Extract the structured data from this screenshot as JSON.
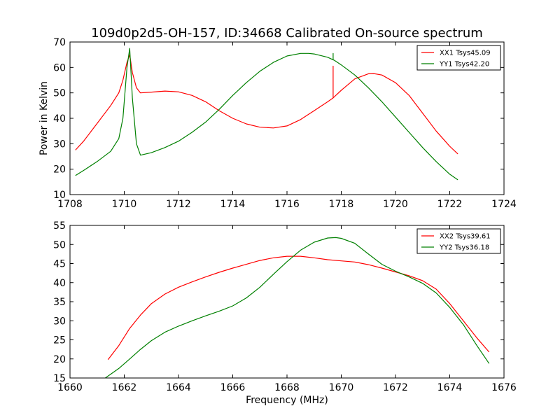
{
  "title": "109d0p2d5-OH-157, ID:34668 Calibrated On-source spectrum",
  "chart_data": [
    {
      "type": "line",
      "xlabel": "",
      "ylabel": "Power in Kelvin",
      "xlim": [
        1708,
        1724
      ],
      "ylim": [
        10,
        70
      ],
      "xticks": [
        "1708",
        "1710",
        "1712",
        "1714",
        "1716",
        "1718",
        "1720",
        "1722",
        "1724"
      ],
      "yticks": [
        "10",
        "20",
        "30",
        "40",
        "50",
        "60",
        "70"
      ],
      "legend_position": "top-right",
      "series": [
        {
          "name": "XX1 Tsys45.09",
          "color": "#ff0000",
          "x": [
            1708.2,
            1708.5,
            1709.0,
            1709.5,
            1709.8,
            1709.95,
            1710.1,
            1710.2,
            1710.3,
            1710.45,
            1710.6,
            1711.0,
            1711.5,
            1712.0,
            1712.5,
            1713.0,
            1713.5,
            1714.0,
            1714.5,
            1715.0,
            1715.5,
            1716.0,
            1716.5,
            1717.0,
            1717.5,
            1717.7,
            1717.7,
            1717.7,
            1717.75,
            1718.0,
            1718.5,
            1719.0,
            1719.2,
            1719.5,
            1720.0,
            1720.5,
            1721.0,
            1721.5,
            1722.0,
            1722.3
          ],
          "y": [
            27.5,
            31,
            38,
            45,
            50,
            55,
            62,
            65,
            58,
            52,
            50,
            50.3,
            50.7,
            50.4,
            49,
            46.5,
            43,
            40,
            37.8,
            36.5,
            36.2,
            37,
            39.5,
            43,
            46.5,
            48,
            60.5,
            48,
            48.5,
            51,
            55.5,
            57.5,
            57.6,
            57,
            54,
            49,
            42,
            35,
            29,
            26
          ]
        },
        {
          "name": "YY1 Tsys42.20",
          "color": "#008000",
          "x": [
            1708.2,
            1708.5,
            1709.0,
            1709.5,
            1709.8,
            1709.95,
            1710.1,
            1710.2,
            1710.3,
            1710.45,
            1710.6,
            1711.0,
            1711.5,
            1712.0,
            1712.5,
            1713.0,
            1713.5,
            1714.0,
            1714.5,
            1715.0,
            1715.5,
            1716.0,
            1716.5,
            1716.8,
            1717.0,
            1717.5,
            1717.7,
            1717.7,
            1717.7,
            1717.75,
            1718.0,
            1718.5,
            1719.0,
            1719.5,
            1720.0,
            1720.5,
            1721.0,
            1721.5,
            1722.0,
            1722.3
          ],
          "y": [
            17.5,
            19.5,
            23,
            27,
            32,
            40,
            60,
            67.5,
            48,
            30,
            25.5,
            26.5,
            28.5,
            31,
            34.5,
            38.5,
            43.5,
            49,
            54,
            58.5,
            62,
            64.5,
            65.5,
            65.5,
            65.3,
            64,
            63,
            65.5,
            63,
            62.8,
            61,
            57,
            52,
            46.5,
            40.5,
            34.5,
            28.5,
            23,
            18,
            15.8
          ]
        }
      ]
    },
    {
      "type": "line",
      "xlabel": "Frequency (MHz)",
      "ylabel": "",
      "xlim": [
        1660,
        1676
      ],
      "ylim": [
        15,
        55
      ],
      "xticks": [
        "1660",
        "1662",
        "1664",
        "1666",
        "1668",
        "1670",
        "1672",
        "1674",
        "1676"
      ],
      "yticks": [
        "15",
        "20",
        "25",
        "30",
        "35",
        "40",
        "45",
        "50",
        "55"
      ],
      "legend_position": "top-right",
      "series": [
        {
          "name": "XX2 Tsys39.61",
          "color": "#ff0000",
          "x": [
            1661.4,
            1661.8,
            1662.2,
            1662.6,
            1663.0,
            1663.5,
            1664.0,
            1664.5,
            1665.0,
            1665.5,
            1666.0,
            1666.5,
            1667.0,
            1667.5,
            1668.0,
            1668.5,
            1669.0,
            1669.5,
            1670.0,
            1670.5,
            1671.0,
            1671.5,
            1672.0,
            1672.5,
            1673.0,
            1673.5,
            1674.0,
            1674.5,
            1675.0,
            1675.45
          ],
          "y": [
            19.8,
            23.5,
            28,
            31.5,
            34.5,
            37,
            38.8,
            40.2,
            41.5,
            42.7,
            43.8,
            44.8,
            45.8,
            46.5,
            46.9,
            46.9,
            46.5,
            46,
            45.7,
            45.4,
            44.7,
            43.8,
            42.8,
            41.8,
            40.5,
            38.3,
            34.5,
            30,
            25.5,
            21.8
          ]
        },
        {
          "name": "YY2 Tsys36.18",
          "color": "#008000",
          "x": [
            1661.3,
            1661.8,
            1662.2,
            1662.6,
            1663.0,
            1663.5,
            1664.0,
            1664.5,
            1665.0,
            1665.5,
            1666.0,
            1666.5,
            1667.0,
            1667.5,
            1668.0,
            1668.5,
            1669.0,
            1669.5,
            1669.8,
            1670.0,
            1670.5,
            1671.0,
            1671.5,
            1672.0,
            1672.5,
            1673.0,
            1673.5,
            1674.0,
            1674.5,
            1675.0,
            1675.45
          ],
          "y": [
            15,
            17.5,
            20,
            22.5,
            24.8,
            27,
            28.6,
            30,
            31.3,
            32.5,
            33.9,
            36,
            38.8,
            42.2,
            45.5,
            48.5,
            50.6,
            51.7,
            51.8,
            51.6,
            50.3,
            47.5,
            44.8,
            43,
            41.5,
            39.8,
            37.3,
            33.5,
            29,
            23.5,
            18.8
          ]
        }
      ]
    }
  ]
}
